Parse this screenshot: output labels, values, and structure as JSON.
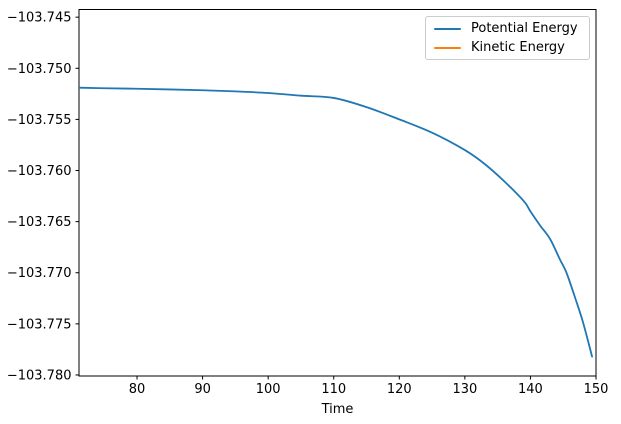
{
  "chart_data": {
    "type": "line",
    "title": "",
    "xlabel": "Time",
    "ylabel": "",
    "xlim": [
      71.15,
      150
    ],
    "ylim": [
      -103.7801,
      -103.74425
    ],
    "grid": false,
    "axis_color": "#000000",
    "xticks": {
      "values": [
        80,
        90,
        100,
        110,
        120,
        130,
        140,
        150
      ],
      "labels": [
        "80",
        "90",
        "100",
        "110",
        "120",
        "130",
        "140",
        "150"
      ]
    },
    "yticks": {
      "values": [
        -103.745,
        -103.75,
        -103.755,
        -103.76,
        -103.765,
        -103.77,
        -103.775,
        -103.78
      ],
      "labels": [
        "−103.745",
        "−103.750",
        "−103.755",
        "−103.760",
        "−103.765",
        "−103.770",
        "−103.775",
        "−103.780"
      ]
    },
    "legend": {
      "position": "upper right",
      "entries": [
        {
          "label": "Potential Energy",
          "color": "#1f77b4"
        },
        {
          "label": "Kinetic Energy",
          "color": "#ff7f0e"
        }
      ]
    },
    "series": [
      {
        "name": "Potential Energy",
        "color": "#1f77b4",
        "x": [
          71.15,
          75,
          80,
          85,
          90,
          95,
          100,
          105,
          110,
          115,
          120,
          125,
          130,
          133,
          136,
          139,
          140,
          141.5,
          143,
          144.5,
          145.5,
          147,
          148,
          149,
          149.4
        ],
        "y": [
          -103.7519,
          -103.75195,
          -103.752,
          -103.75207,
          -103.75215,
          -103.75226,
          -103.75242,
          -103.75268,
          -103.7529,
          -103.7538,
          -103.755,
          -103.7563,
          -103.758,
          -103.75935,
          -103.76105,
          -103.763,
          -103.764,
          -103.7654,
          -103.7667,
          -103.7687,
          -103.77,
          -103.7728,
          -103.7748,
          -103.7772,
          -103.7782
        ]
      },
      {
        "name": "Kinetic Energy",
        "color": "#ff7f0e",
        "x": [],
        "y": []
      }
    ]
  }
}
